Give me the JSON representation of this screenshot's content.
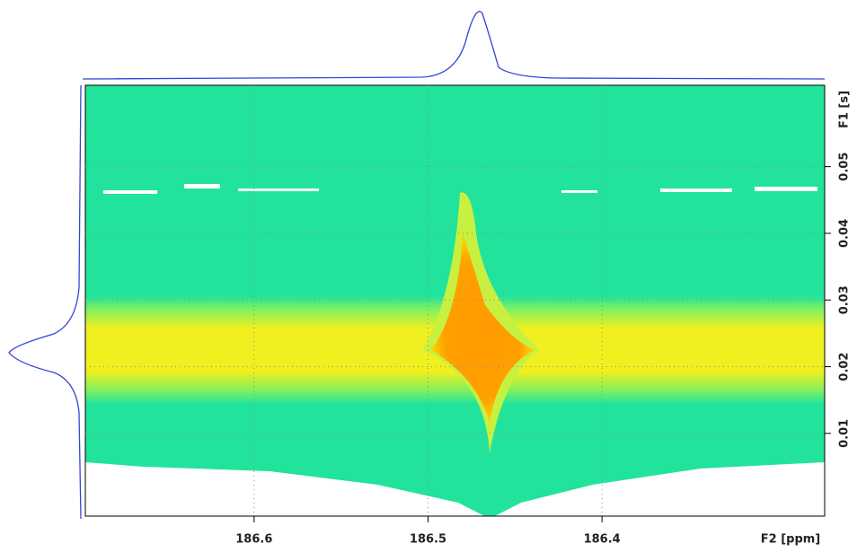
{
  "chart_data": {
    "type": "contour",
    "x_label": "F2 [ppm]",
    "y_label": "F1 [s]",
    "xlim": [
      186.697,
      186.272
    ],
    "xticks": [
      186.6,
      186.5,
      186.4
    ],
    "ylim": [
      -0.0024,
      0.0622
    ],
    "yticks": [
      0.01,
      0.02,
      0.03,
      0.04,
      0.05
    ],
    "grid": true
  }
}
